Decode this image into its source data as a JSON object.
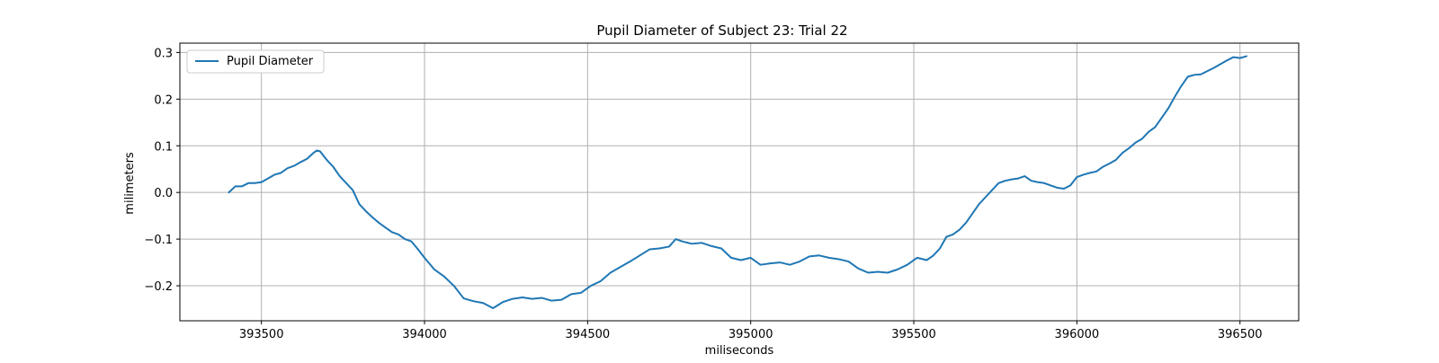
{
  "chart_data": {
    "type": "line",
    "title": "Pupil Diameter of Subject 23: Trial 22",
    "xlabel": "miliseconds",
    "ylabel": "milimeters",
    "xlim": [
      393250,
      396680
    ],
    "ylim": [
      -0.275,
      0.32
    ],
    "xticks": [
      393500,
      394000,
      394500,
      395000,
      395500,
      396000,
      396500
    ],
    "xtick_labels": [
      "393500",
      "394000",
      "394500",
      "395000",
      "395500",
      "396000",
      "396500"
    ],
    "yticks": [
      0.3,
      0.2,
      0.1,
      0.0,
      -0.1,
      -0.2
    ],
    "ytick_labels": [
      "0.3",
      "0.2",
      "0.1",
      "0.0",
      "−0.1",
      "−0.2"
    ],
    "grid": true,
    "legend_position": "top-left",
    "color": "#1f77b4",
    "series": [
      {
        "name": "Pupil Diameter",
        "x": [
          393400,
          393420,
          393440,
          393460,
          393480,
          393500,
          393520,
          393540,
          393560,
          393580,
          393600,
          393620,
          393640,
          393660,
          393670,
          393680,
          393700,
          393720,
          393740,
          393760,
          393780,
          393800,
          393820,
          393840,
          393860,
          393880,
          393900,
          393920,
          393940,
          393960,
          393980,
          394000,
          394030,
          394060,
          394090,
          394120,
          394150,
          394180,
          394210,
          394240,
          394270,
          394300,
          394330,
          394360,
          394390,
          394420,
          394450,
          394480,
          394510,
          394540,
          394570,
          394600,
          394630,
          394660,
          394690,
          394720,
          394750,
          394770,
          394790,
          394820,
          394850,
          394880,
          394910,
          394940,
          394970,
          395000,
          395030,
          395060,
          395090,
          395120,
          395150,
          395180,
          395210,
          395240,
          395270,
          395300,
          395330,
          395360,
          395390,
          395420,
          395450,
          395480,
          395510,
          395540,
          395560,
          395580,
          395600,
          395620,
          395640,
          395660,
          395680,
          395700,
          395720,
          395740,
          395760,
          395780,
          395800,
          395820,
          395840,
          395860,
          395880,
          395900,
          395920,
          395940,
          395960,
          395980,
          396000,
          396020,
          396040,
          396060,
          396080,
          396100,
          396120,
          396140,
          396160,
          396180,
          396200,
          396220,
          396240,
          396260,
          396280,
          396300,
          396320,
          396340,
          396360,
          396380,
          396400,
          396420,
          396440,
          396460,
          396480,
          396500,
          396520
        ],
        "y": [
          0.0,
          0.013,
          0.013,
          0.02,
          0.02,
          0.022,
          0.03,
          0.038,
          0.042,
          0.052,
          0.057,
          0.065,
          0.072,
          0.085,
          0.09,
          0.088,
          0.07,
          0.055,
          0.035,
          0.02,
          0.005,
          -0.025,
          -0.04,
          -0.053,
          -0.065,
          -0.075,
          -0.085,
          -0.09,
          -0.1,
          -0.105,
          -0.122,
          -0.14,
          -0.165,
          -0.18,
          -0.2,
          -0.227,
          -0.233,
          -0.237,
          -0.248,
          -0.235,
          -0.228,
          -0.225,
          -0.228,
          -0.226,
          -0.232,
          -0.23,
          -0.218,
          -0.215,
          -0.2,
          -0.19,
          -0.172,
          -0.16,
          -0.148,
          -0.135,
          -0.122,
          -0.12,
          -0.116,
          -0.1,
          -0.105,
          -0.11,
          -0.108,
          -0.115,
          -0.12,
          -0.14,
          -0.145,
          -0.14,
          -0.155,
          -0.152,
          -0.15,
          -0.155,
          -0.148,
          -0.137,
          -0.135,
          -0.14,
          -0.143,
          -0.148,
          -0.163,
          -0.172,
          -0.17,
          -0.172,
          -0.165,
          -0.155,
          -0.14,
          -0.145,
          -0.135,
          -0.12,
          -0.095,
          -0.09,
          -0.08,
          -0.065,
          -0.045,
          -0.025,
          -0.01,
          0.005,
          0.02,
          0.025,
          0.028,
          0.03,
          0.035,
          0.025,
          0.022,
          0.02,
          0.015,
          0.01,
          0.008,
          0.015,
          0.033,
          0.038,
          0.042,
          0.045,
          0.055,
          0.062,
          0.07,
          0.085,
          0.095,
          0.107,
          0.115,
          0.13,
          0.14,
          0.16,
          0.18,
          0.205,
          0.228,
          0.248,
          0.252,
          0.253,
          0.26,
          0.267,
          0.275,
          0.283,
          0.29,
          0.288,
          0.292
        ]
      }
    ]
  }
}
